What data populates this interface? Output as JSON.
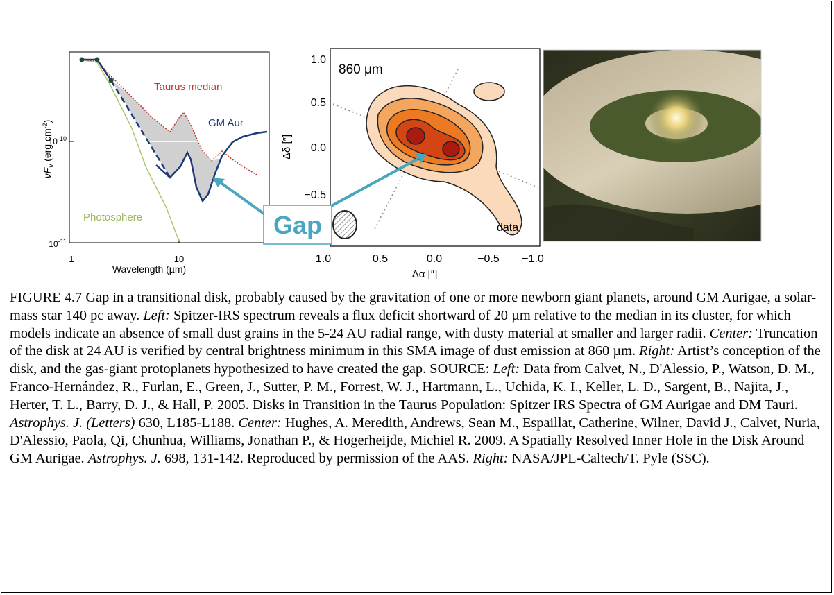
{
  "left_panel": {
    "y_label": {
      "main": "νF",
      "sub": "ν",
      "unit": " (erg cm",
      "sup": "-2",
      "close": ")"
    },
    "x_label": "Wavelength (µm)",
    "y_ticks": [
      {
        "base": "10",
        "exp": "-10"
      },
      {
        "base": "10",
        "exp": "-11"
      }
    ],
    "x_ticks": [
      "1",
      "10"
    ],
    "annotations": {
      "taurus_median": "Taurus median",
      "gm_aur": "GM Aur",
      "photosphere": "Photosphere"
    }
  },
  "center_panel": {
    "wavelength_label": "860 μm",
    "y_label": "Δδ [″]",
    "x_label": "Δα [″]",
    "y_ticks": [
      "1.0",
      "0.5",
      "0.0",
      "−0.5"
    ],
    "x_ticks": [
      "1.0",
      "0.5",
      "0.0",
      "−0.5",
      "−1.0"
    ],
    "data_label": "data"
  },
  "callout": "Gap",
  "caption": [
    {
      "text": "FIGURE 4.7  Gap in a transitional disk, probably caused by the gravitation of one or more newborn giant planets, around GM Aurigae, a solar-mass star 140 pc away. ",
      "italic": false
    },
    {
      "text": "Left:",
      "italic": true
    },
    {
      "text": " Spitzer-IRS spectrum reveals a flux deficit shortward of 20 µm relative to the median in its cluster, for which models indicate an absence of small dust grains in the 5-24 AU radial range, with dusty material at smaller and larger radii. ",
      "italic": false
    },
    {
      "text": "Center:",
      "italic": true
    },
    {
      "text": " Truncation of the disk at 24 AU is verified by central brightness minimum in this SMA image of dust emission at 860 µm. ",
      "italic": false
    },
    {
      "text": "Right:",
      "italic": true
    },
    {
      "text": " Artist’s conception of the disk, and the gas-giant protoplanets hypothesized to have created the gap. SOURCE: ",
      "italic": false
    },
    {
      "text": "Left:",
      "italic": true
    },
    {
      "text": " Data from Calvet, N., D'Alessio, P., Watson, D. M., Franco-Hernández, R., Furlan, E., Green, J., Sutter, P. M., Forrest, W. J., Hartmann, L., Uchida, K. I., Keller, L. D., Sargent, B., Najita, J., Herter, T. L., Barry, D. J., & Hall, P. 2005. Disks in Transition in the Taurus Population: Spitzer IRS Spectra of GM Aurigae and DM Tauri. ",
      "italic": false
    },
    {
      "text": "Astrophys. J. (Letters)",
      "italic": true
    },
    {
      "text": " 630, L185-L188. ",
      "italic": false
    },
    {
      "text": "Center:",
      "italic": true
    },
    {
      "text": " Hughes, A. Meredith, Andrews, Sean M., Espaillat, Catherine, Wilner, David J., Calvet, Nuria, D'Alessio, Paola, Qi, Chunhua, Williams, Jonathan P., & Hogerheijde, Michiel R. 2009. A Spatially Resolved Inner Hole in the Disk Around GM Aurigae. ",
      "italic": false
    },
    {
      "text": "Astrophys. J.",
      "italic": true
    },
    {
      "text": " 698, 131-142. Reproduced by permission of the AAS. ",
      "italic": false
    },
    {
      "text": "Right:",
      "italic": true
    },
    {
      "text": " NASA/JPL-Caltech/T. Pyle (SSC).",
      "italic": false
    }
  ]
}
